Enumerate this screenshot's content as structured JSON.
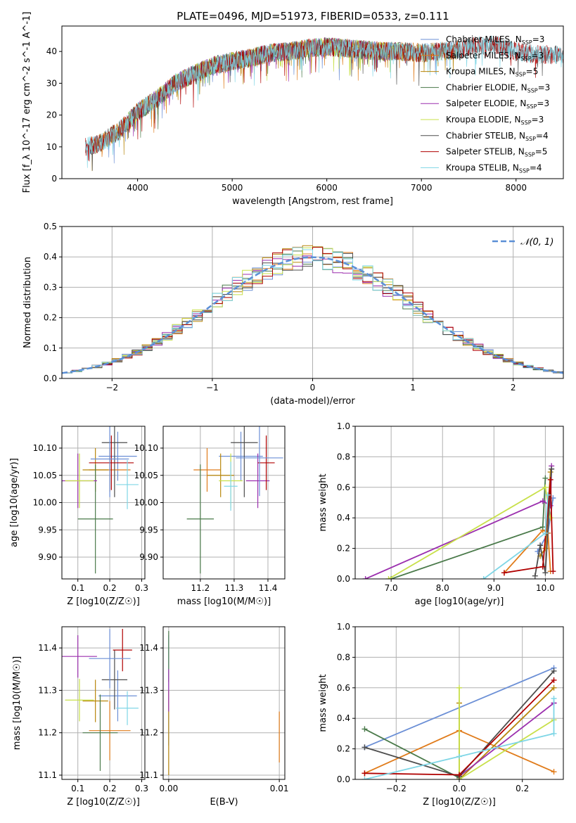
{
  "figure_title": "PLATE=0496, MJD=51973, FIBERID=0533, z=0.111",
  "colors": {
    "series": [
      "#6b8fd6",
      "#e07b1a",
      "#b8860b",
      "#4a7a4a",
      "#9b2fae",
      "#c8e04a",
      "#4d4d4d",
      "#b00000",
      "#7fd6e6"
    ],
    "gauss": "#5b8fd6",
    "axis": "#000000",
    "grid": "#b0b0b0"
  },
  "chart_data": [
    {
      "id": "spectrum",
      "type": "line",
      "title": "PLATE=0496, MJD=51973, FIBERID=0533, z=0.111",
      "xlabel": "wavelength [Angstrom, rest frame]",
      "ylabel": "Flux [f_λ 10^-17 erg cm^-2 s^-1 A^-1]",
      "xlim": [
        3200,
        8500
      ],
      "ylim": [
        0,
        48
      ],
      "xticks": [
        4000,
        5000,
        6000,
        7000,
        8000
      ],
      "yticks": [
        0,
        10,
        20,
        30,
        40
      ],
      "grid": false,
      "legend_position": "upper right",
      "continuum": {
        "x": [
          3450,
          3600,
          3800,
          4000,
          4200,
          4400,
          4600,
          4800,
          5000,
          5200,
          5400,
          5600,
          5800,
          6000,
          6200,
          6400,
          6600,
          6800,
          7000,
          7200,
          7400,
          7600,
          7800,
          8000,
          8200,
          8400
        ],
        "y": [
          10,
          11,
          15,
          21,
          25,
          30,
          33,
          35.5,
          37,
          38,
          39.5,
          40,
          41,
          41.5,
          41,
          40.5,
          40,
          40,
          39.5,
          40,
          40.5,
          42,
          42,
          40,
          39,
          39
        ]
      },
      "series": [
        {
          "name": "Chabrier MILES, N_SSP=3",
          "x_range": [
            3500,
            7400
          ]
        },
        {
          "name": "Salpeter MILES, N_SSP=3",
          "x_range": [
            3500,
            7400
          ]
        },
        {
          "name": "Kroupa MILES, N_SSP=5",
          "x_range": [
            3500,
            7400
          ]
        },
        {
          "name": "Chabrier ELODIE, N_SSP=3",
          "x_range": [
            3900,
            6800
          ]
        },
        {
          "name": "Salpeter ELODIE, N_SSP=3",
          "x_range": [
            3900,
            6800
          ]
        },
        {
          "name": "Kroupa ELODIE, N_SSP=3",
          "x_range": [
            3900,
            6800
          ]
        },
        {
          "name": "Chabrier STELIB, N_SSP=4",
          "x_range": [
            3450,
            8500
          ]
        },
        {
          "name": "Salpeter STELIB, N_SSP=5",
          "x_range": [
            3450,
            8500
          ]
        },
        {
          "name": "Kroupa STELIB, N_SSP=4",
          "x_range": [
            3450,
            8500
          ]
        }
      ]
    },
    {
      "id": "residuals",
      "type": "area",
      "xlabel": "(data-model)/error",
      "ylabel": "Normed distribution",
      "xlim": [
        -2.5,
        2.5
      ],
      "ylim": [
        0,
        0.5
      ],
      "xticks": [
        -2,
        -1,
        0,
        1,
        2
      ],
      "yticks": [
        0.0,
        0.1,
        0.2,
        0.3,
        0.4,
        0.5
      ],
      "grid": true,
      "legend_position": "upper right",
      "legend": "𝒩(0, 1)",
      "bin_width": 0.1,
      "note": "step histograms, one per model, each following a unit normal curve"
    },
    {
      "id": "age_vs_Z",
      "type": "scatter",
      "xlabel": "Z [log10(Z/Z☉)]",
      "ylabel": "age  [log10(age/yr)]",
      "xlim": [
        0.05,
        0.31
      ],
      "ylim": [
        9.86,
        10.14
      ],
      "xticks": [
        0.1,
        0.2,
        0.3
      ],
      "yticks": [
        9.9,
        9.95,
        10.0,
        10.05,
        10.1
      ],
      "grid": true,
      "points": [
        {
          "x": 0.225,
          "y": 10.085,
          "xerr": 0.06,
          "yerr": 0.045
        },
        {
          "x": 0.2,
          "y": 10.06,
          "xerr": 0.065,
          "yerr": 0.04
        },
        {
          "x": 0.155,
          "y": 10.06,
          "xerr": 0.04,
          "yerr": 0.04
        },
        {
          "x": 0.155,
          "y": 9.97,
          "xerr": 0.055,
          "yerr": 0.1
        },
        {
          "x": 0.1,
          "y": 10.04,
          "xerr": 0.06,
          "yerr": 0.05
        },
        {
          "x": 0.105,
          "y": 10.04,
          "xerr": 0.045,
          "yerr": 0.05
        },
        {
          "x": 0.215,
          "y": 10.11,
          "xerr": 0.04,
          "yerr": 0.1
        },
        {
          "x": 0.205,
          "y": 10.073,
          "xerr": 0.07,
          "yerr": 0.05
        },
        {
          "x": 0.255,
          "y": 10.033,
          "xerr": 0.035,
          "yerr": 0.045
        },
        {
          "x": 0.2,
          "y": 10.08,
          "xerr": 0.06,
          "yerr": 0.07
        }
      ]
    },
    {
      "id": "age_vs_mass",
      "type": "scatter",
      "xlabel": "mass [log10(M/M☉)]",
      "ylabel": "",
      "xlim": [
        11.09,
        11.45
      ],
      "ylim": [
        9.86,
        10.14
      ],
      "xticks": [
        11.2,
        11.3,
        11.4
      ],
      "yticks": [
        9.9,
        9.95,
        10.0,
        10.05,
        10.1
      ],
      "grid": true,
      "points": [
        {
          "x": 11.32,
          "y": 10.085,
          "xerr": 0.065,
          "yerr": 0.045
        },
        {
          "x": 11.22,
          "y": 10.06,
          "xerr": 0.04,
          "yerr": 0.04
        },
        {
          "x": 11.26,
          "y": 10.05,
          "xerr": 0.04,
          "yerr": 0.04
        },
        {
          "x": 11.2,
          "y": 9.97,
          "xerr": 0.04,
          "yerr": 0.1
        },
        {
          "x": 11.37,
          "y": 10.04,
          "xerr": 0.035,
          "yerr": 0.05
        },
        {
          "x": 11.29,
          "y": 10.04,
          "xerr": 0.035,
          "yerr": 0.05
        },
        {
          "x": 11.33,
          "y": 10.11,
          "xerr": 0.04,
          "yerr": 0.1
        },
        {
          "x": 11.395,
          "y": 10.073,
          "xerr": 0.025,
          "yerr": 0.05
        },
        {
          "x": 11.29,
          "y": 10.03,
          "xerr": 0.02,
          "yerr": 0.045
        },
        {
          "x": 11.375,
          "y": 10.082,
          "xerr": 0.07,
          "yerr": 0.07
        }
      ]
    },
    {
      "id": "mass_weight_vs_age",
      "type": "line",
      "xlabel": "age  [log10(age/yr)]",
      "ylabel": "mass weight",
      "xlim": [
        6.3,
        10.35
      ],
      "ylim": [
        0,
        1
      ],
      "xticks": [
        7,
        8,
        9,
        10
      ],
      "yticks": [
        0.0,
        0.2,
        0.4,
        0.6,
        0.8,
        1.0
      ],
      "grid": true,
      "series": [
        {
          "x": [
            9.85,
            10.05,
            10.15
          ],
          "y": [
            0.18,
            0.3,
            0.53
          ]
        },
        {
          "x": [
            9.2,
            9.95,
            10.05,
            10.1
          ],
          "y": [
            0.04,
            0.32,
            0.3,
            0.05
          ]
        },
        {
          "x": [
            9.9,
            10.0,
            10.1
          ],
          "y": [
            0.15,
            0.2,
            0.7
          ]
        },
        {
          "x": [
            7.0,
            9.95,
            10.0
          ],
          "y": [
            0.0,
            0.34,
            0.66
          ]
        },
        {
          "x": [
            6.5,
            9.95,
            10.1,
            10.12
          ],
          "y": [
            0.0,
            0.51,
            0.48,
            0.74
          ]
        },
        {
          "x": [
            6.95,
            10.0,
            10.1
          ],
          "y": [
            0.0,
            0.6,
            0.4
          ]
        },
        {
          "x": [
            9.8,
            9.9,
            10.0,
            10.12
          ],
          "y": [
            0.02,
            0.22,
            0.04,
            0.72
          ]
        },
        {
          "x": [
            9.2,
            9.95,
            10.1,
            10.15
          ],
          "y": [
            0.04,
            0.08,
            0.65,
            0.05
          ]
        },
        {
          "x": [
            8.8,
            10.0,
            10.05
          ],
          "y": [
            0.0,
            0.3,
            0.55
          ]
        }
      ]
    },
    {
      "id": "mass_vs_Z",
      "type": "scatter",
      "xlabel": "Z [log10(Z/Z☉)]",
      "ylabel": "mass [log10(M/M☉)]",
      "xlim": [
        0.05,
        0.31
      ],
      "ylim": [
        11.09,
        11.45
      ],
      "xticks": [
        0.1,
        0.2,
        0.3
      ],
      "yticks": [
        11.1,
        11.2,
        11.3,
        11.4
      ],
      "grid": true,
      "points": [
        {
          "x": 0.225,
          "y": 11.287,
          "xerr": 0.06,
          "yerr": 0.06
        },
        {
          "x": 0.2,
          "y": 11.205,
          "xerr": 0.065,
          "yerr": 0.07
        },
        {
          "x": 0.155,
          "y": 11.275,
          "xerr": 0.04,
          "yerr": 0.05
        },
        {
          "x": 0.17,
          "y": 11.2,
          "xerr": 0.055,
          "yerr": 0.09
        },
        {
          "x": 0.1,
          "y": 11.38,
          "xerr": 0.06,
          "yerr": 0.05
        },
        {
          "x": 0.105,
          "y": 11.277,
          "xerr": 0.045,
          "yerr": 0.05
        },
        {
          "x": 0.215,
          "y": 11.325,
          "xerr": 0.04,
          "yerr": 0.07
        },
        {
          "x": 0.24,
          "y": 11.395,
          "xerr": 0.03,
          "yerr": 0.05
        },
        {
          "x": 0.255,
          "y": 11.258,
          "xerr": 0.035,
          "yerr": 0.04
        },
        {
          "x": 0.2,
          "y": 11.375,
          "xerr": 0.065,
          "yerr": 0.07
        }
      ]
    },
    {
      "id": "mass_vs_ebv",
      "type": "scatter",
      "xlabel": "E(B-V)",
      "ylabel": "",
      "xlim": [
        -0.0005,
        0.0105
      ],
      "ylim": [
        11.09,
        11.45
      ],
      "xticks": [
        0.0,
        0.01
      ],
      "xtick_labels": [
        "0.00",
        "0.01"
      ],
      "yticks": [
        11.1,
        11.2,
        11.3,
        11.4
      ],
      "grid": true,
      "points": [
        {
          "x": 0.0,
          "y": 11.3,
          "yerr": 0.13
        },
        {
          "x": 0.01,
          "y": 11.19,
          "yerr": 0.06
        },
        {
          "x": 0.0,
          "y": 11.2,
          "yerr": 0.1
        },
        {
          "x": 0.0,
          "y": 11.38,
          "yerr": 0.06
        },
        {
          "x": 0.0,
          "y": 11.3,
          "yerr": 0.05
        }
      ]
    },
    {
      "id": "mass_weight_vs_Z",
      "type": "line",
      "xlabel": "Z [log10(Z/Z☉)]",
      "ylabel": "mass weight",
      "xlim": [
        -0.33,
        0.33
      ],
      "ylim": [
        0,
        1
      ],
      "xticks": [
        -0.2,
        0.0,
        0.2
      ],
      "yticks": [
        0.0,
        0.2,
        0.4,
        0.6,
        0.8,
        1.0
      ],
      "grid": true,
      "series": [
        {
          "x": [
            -0.3,
            0.3
          ],
          "y": [
            0.21,
            0.73
          ]
        },
        {
          "x": [
            -0.3,
            0.0,
            0.3
          ],
          "y": [
            0.04,
            0.32,
            0.05
          ]
        },
        {
          "x": [
            0.0,
            0.0,
            0.3
          ],
          "y": [
            0.5,
            0.0,
            0.6
          ]
        },
        {
          "x": [
            -0.3,
            0.0
          ],
          "y": [
            0.33,
            0.01
          ]
        },
        {
          "x": [
            0.0,
            0.3,
            0.3
          ],
          "y": [
            0.02,
            0.5,
            0.5
          ]
        },
        {
          "x": [
            0.0,
            0.0,
            0.3
          ],
          "y": [
            0.6,
            0.0,
            0.39
          ]
        },
        {
          "x": [
            -0.3,
            0.0,
            0.3
          ],
          "y": [
            0.21,
            0.02,
            0.71
          ]
        },
        {
          "x": [
            -0.3,
            0.0,
            0.3
          ],
          "y": [
            0.04,
            0.03,
            0.65
          ]
        },
        {
          "x": [
            -0.3,
            0.0,
            0.3,
            0.3
          ],
          "y": [
            0.0,
            0.15,
            0.3,
            0.53
          ]
        }
      ]
    }
  ]
}
